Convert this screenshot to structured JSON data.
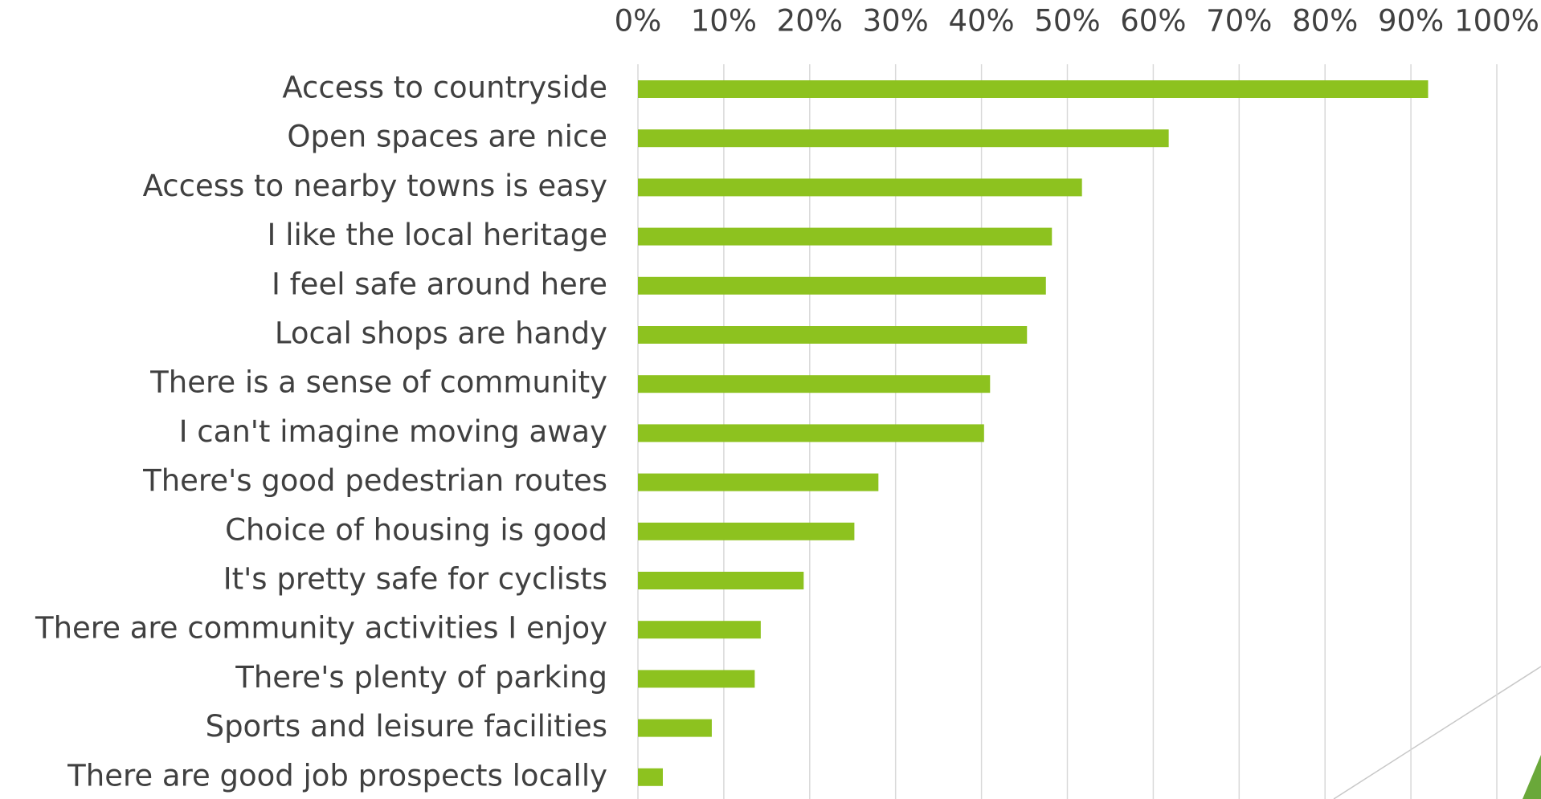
{
  "chart_data": {
    "type": "bar",
    "orientation": "horizontal",
    "categories": [
      "Access to countryside",
      "Open spaces are nice",
      "Access to nearby towns is easy",
      "I like the local heritage",
      "I feel safe around here",
      "Local shops are handy",
      "There is a sense of community",
      "I can't imagine moving away",
      "There's good pedestrian routes",
      "Choice of housing is good",
      "It's pretty safe for cyclists",
      "There are community activities I enjoy",
      "There's plenty of parking",
      "Sports and leisure facilities",
      "There are good job prospects locally"
    ],
    "values": [
      92.0,
      61.8,
      51.7,
      48.2,
      47.5,
      45.3,
      41.0,
      40.3,
      28.0,
      25.2,
      19.3,
      14.3,
      13.6,
      8.6,
      2.9
    ],
    "color": "#8dc21f",
    "xlim": [
      0,
      100
    ],
    "xticks": [
      {
        "value": 0,
        "label": "0%"
      },
      {
        "value": 10,
        "label": "10%"
      },
      {
        "value": 20,
        "label": "20%"
      },
      {
        "value": 30,
        "label": "30%"
      },
      {
        "value": 40,
        "label": "40%"
      },
      {
        "value": 50,
        "label": "50%"
      },
      {
        "value": 60,
        "label": "60%"
      },
      {
        "value": 70,
        "label": "70%"
      },
      {
        "value": 80,
        "label": "80%"
      },
      {
        "value": 90,
        "label": "90%"
      },
      {
        "value": 100,
        "label": "100%"
      }
    ],
    "grid": true
  }
}
